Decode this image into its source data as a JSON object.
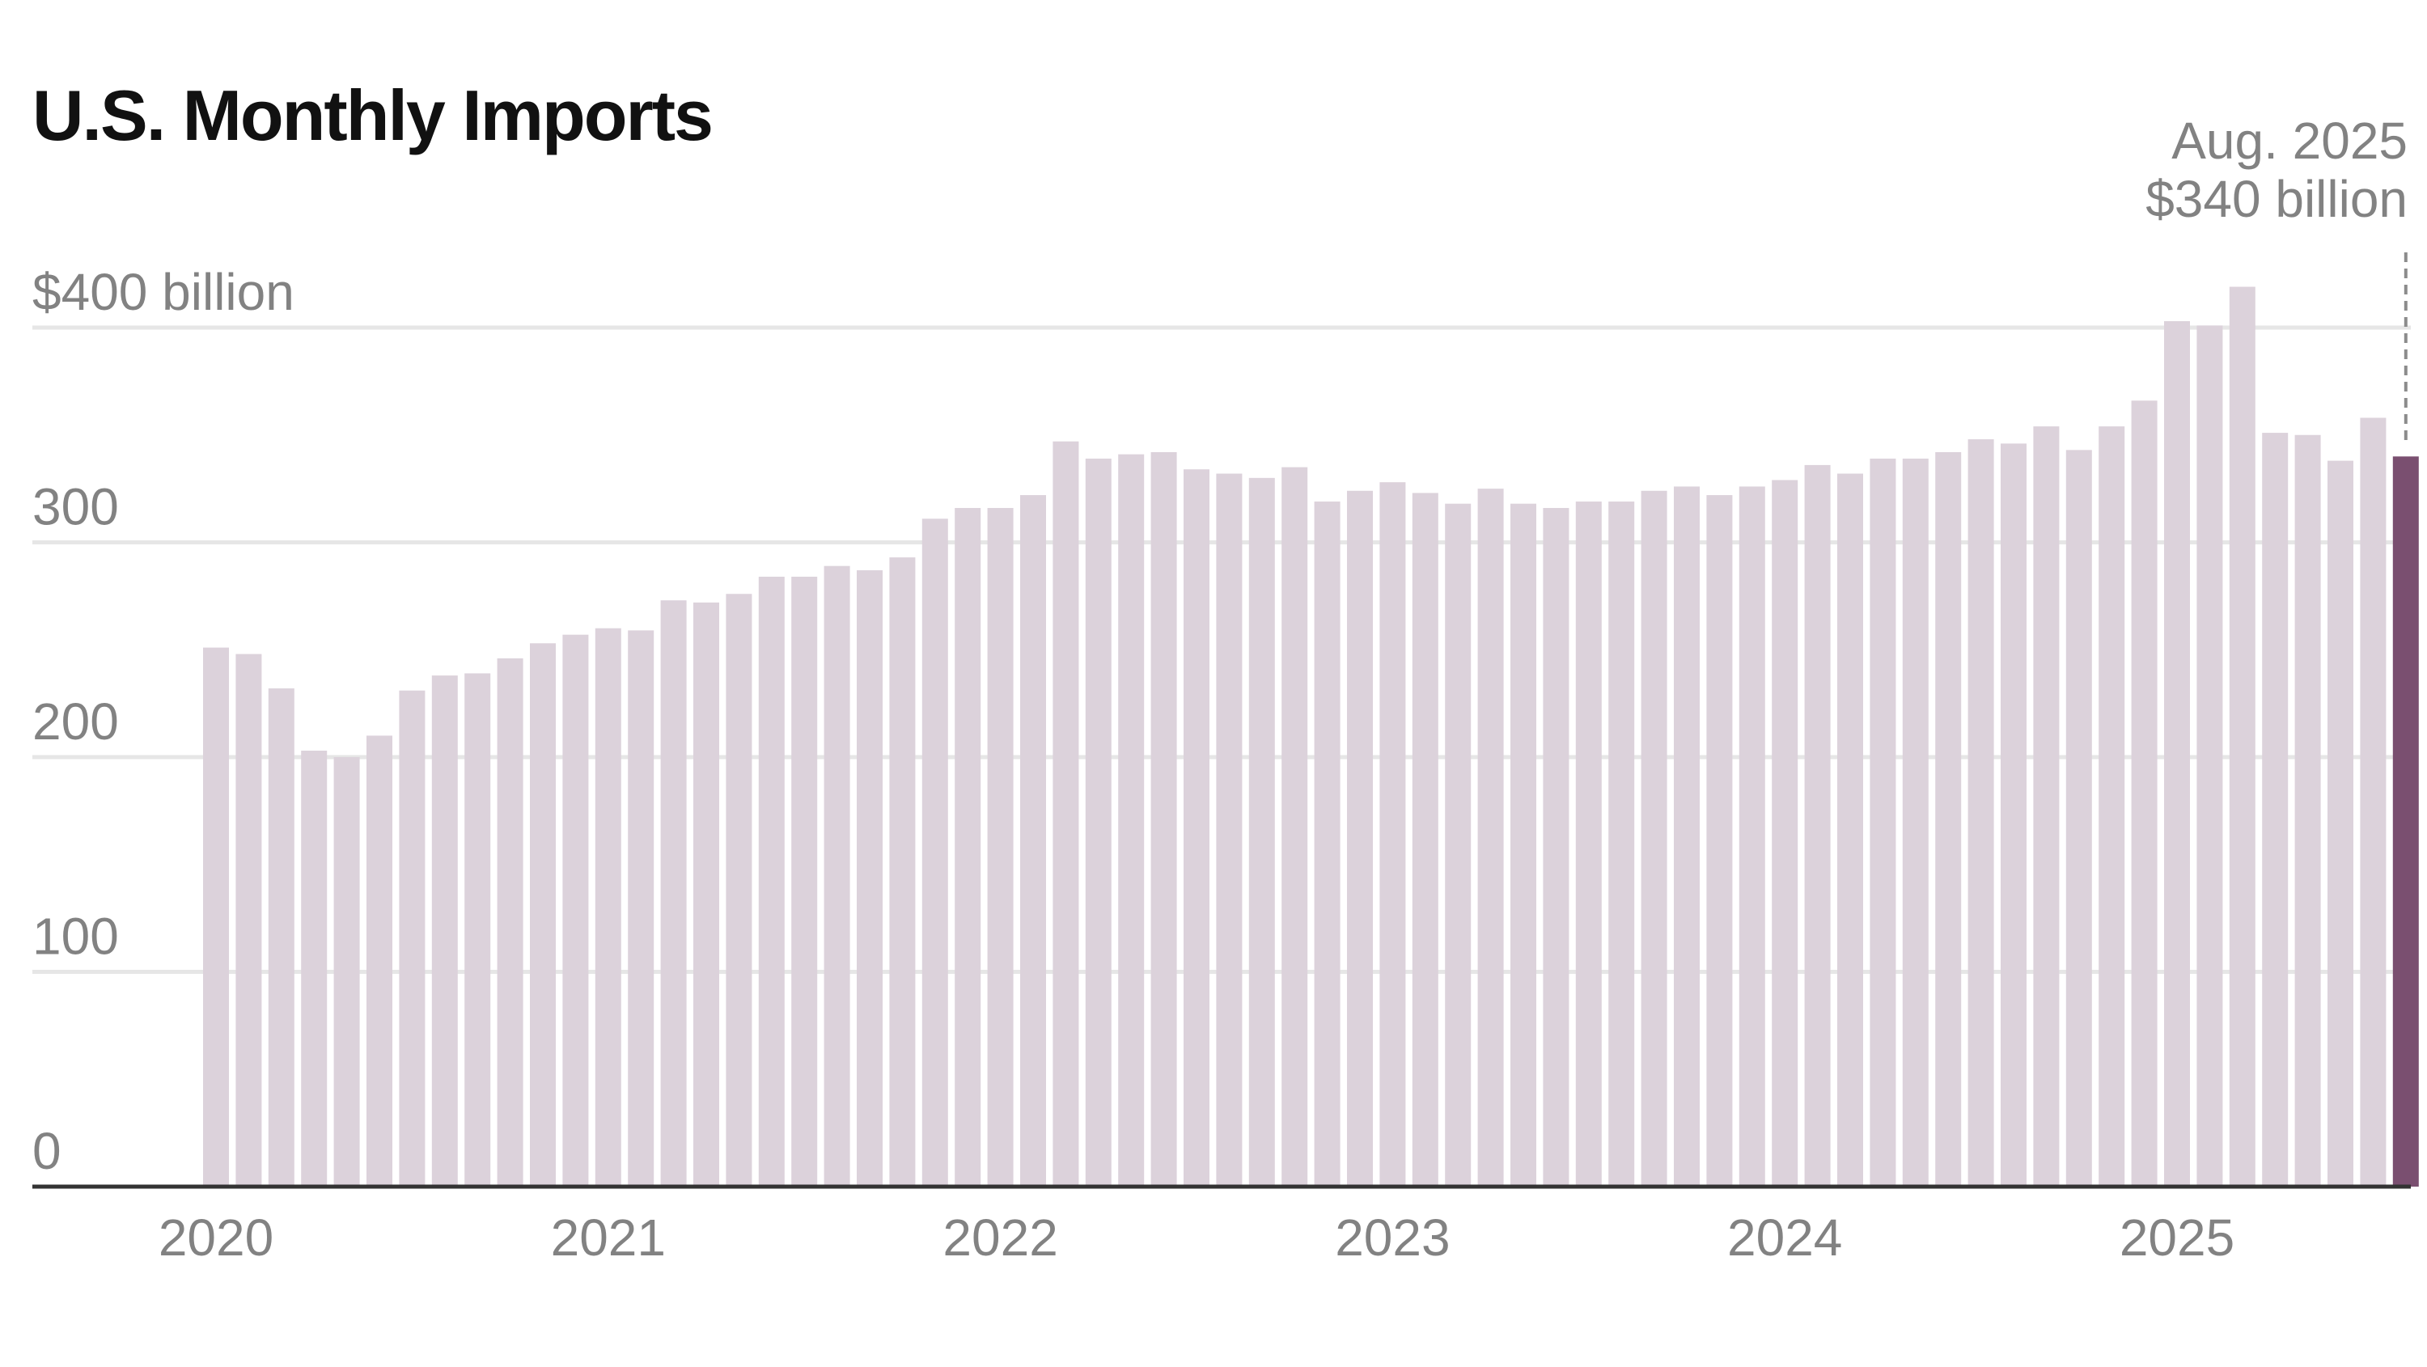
{
  "title": "U.S. Monthly Imports",
  "chart_data": {
    "type": "bar",
    "title": "U.S. Monthly Imports",
    "xlabel": "",
    "ylabel": "",
    "ylim": [
      0,
      400
    ],
    "grid": true,
    "y_ticks": [
      {
        "value": 400,
        "label": "$400 billion"
      },
      {
        "value": 300,
        "label": "300"
      },
      {
        "value": 200,
        "label": "200"
      },
      {
        "value": 100,
        "label": "100"
      },
      {
        "value": 0,
        "label": "0"
      }
    ],
    "x_tick_labels": [
      "2020",
      "2021",
      "2022",
      "2023",
      "2024",
      "2025"
    ],
    "categories": [
      "2020-01",
      "2020-02",
      "2020-03",
      "2020-04",
      "2020-05",
      "2020-06",
      "2020-07",
      "2020-08",
      "2020-09",
      "2020-10",
      "2020-11",
      "2020-12",
      "2021-01",
      "2021-02",
      "2021-03",
      "2021-04",
      "2021-05",
      "2021-06",
      "2021-07",
      "2021-08",
      "2021-09",
      "2021-10",
      "2021-11",
      "2021-12",
      "2022-01",
      "2022-02",
      "2022-03",
      "2022-04",
      "2022-05",
      "2022-06",
      "2022-07",
      "2022-08",
      "2022-09",
      "2022-10",
      "2022-11",
      "2022-12",
      "2023-01",
      "2023-02",
      "2023-03",
      "2023-04",
      "2023-05",
      "2023-06",
      "2023-07",
      "2023-08",
      "2023-09",
      "2023-10",
      "2023-11",
      "2023-12",
      "2024-01",
      "2024-02",
      "2024-03",
      "2024-04",
      "2024-05",
      "2024-06",
      "2024-07",
      "2024-08",
      "2024-09",
      "2024-10",
      "2024-11",
      "2024-12",
      "2025-01",
      "2025-02",
      "2025-03",
      "2025-04",
      "2025-05",
      "2025-06",
      "2025-07",
      "2025-08"
    ],
    "values": [
      251,
      248,
      232,
      203,
      200,
      210,
      231,
      238,
      239,
      246,
      253,
      257,
      260,
      259,
      273,
      272,
      276,
      284,
      284,
      289,
      287,
      293,
      311,
      316,
      316,
      322,
      347,
      339,
      341,
      342,
      334,
      332,
      330,
      335,
      319,
      324,
      328,
      323,
      318,
      325,
      318,
      316,
      319,
      319,
      324,
      326,
      322,
      326,
      329,
      336,
      332,
      339,
      339,
      342,
      348,
      346,
      354,
      343,
      354,
      366,
      403,
      401,
      419,
      351,
      350,
      338,
      358,
      340
    ],
    "highlight_index": 67,
    "colors": {
      "bar": "#dcd2db",
      "highlight": "#7a4f70",
      "grid": "#e6e6e6",
      "axis": "#333333",
      "text": "#828282"
    },
    "annotation": {
      "lines": [
        "Aug. 2025",
        "$340 billion"
      ]
    }
  }
}
